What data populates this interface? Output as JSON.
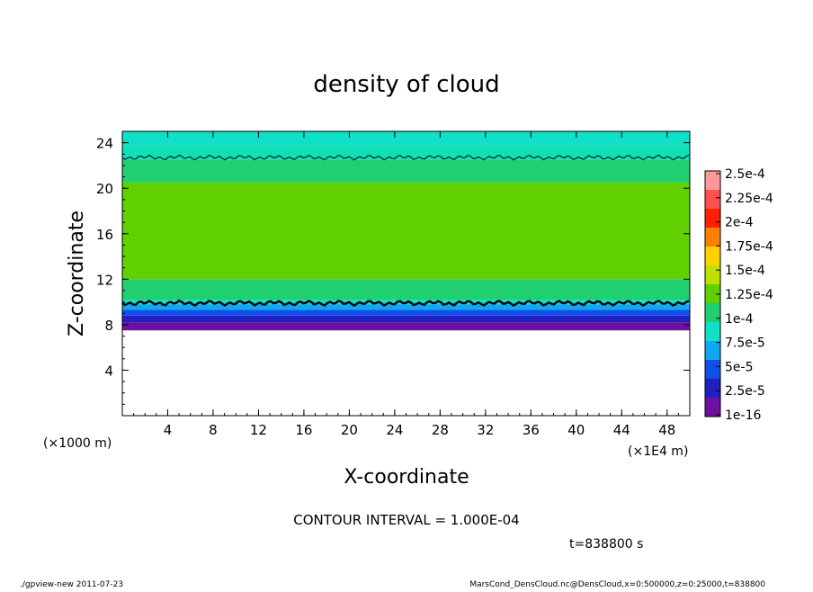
{
  "chart_data": {
    "type": "heatmap",
    "title": "density of cloud",
    "xlabel": "X-coordinate",
    "ylabel": "Z-coordinate",
    "x_unit": "(×1E4 m)",
    "y_unit": "(×1000 m)",
    "xlim": [
      0,
      50
    ],
    "ylim": [
      0,
      25
    ],
    "x_ticks": [
      "4",
      "8",
      "12",
      "16",
      "20",
      "24",
      "28",
      "32",
      "36",
      "40",
      "44",
      "48"
    ],
    "y_ticks": [
      "4",
      "8",
      "12",
      "16",
      "20",
      "24"
    ],
    "colorbar_labels": [
      "2.5e-4",
      "2.25e-4",
      "2e-4",
      "1.75e-4",
      "1.5e-4",
      "1.25e-4",
      "1e-4",
      "7.5e-5",
      "5e-5",
      "2.5e-5",
      "1e-16"
    ],
    "colorbar_colors": [
      "#ff9999",
      "#ff5050",
      "#ff2000",
      "#ff8000",
      "#ffd000",
      "#c0e000",
      "#60d000",
      "#20d070",
      "#10e0c8",
      "#10a8f0",
      "#1050e8",
      "#2020c0",
      "#7010a0"
    ],
    "bands": [
      {
        "z_bottom": 7.5,
        "z_top": 8.2,
        "color": "#7010a0"
      },
      {
        "z_bottom": 8.2,
        "z_top": 8.8,
        "color": "#2020c0"
      },
      {
        "z_bottom": 8.8,
        "z_top": 9.3,
        "color": "#1050e8"
      },
      {
        "z_bottom": 9.3,
        "z_top": 9.8,
        "color": "#10a8f0"
      },
      {
        "z_bottom": 9.8,
        "z_top": 10.2,
        "color": "#10e0c8"
      },
      {
        "z_bottom": 10.2,
        "z_top": 12.0,
        "color": "#20d070"
      },
      {
        "z_bottom": 12.0,
        "z_top": 20.5,
        "color": "#60d000"
      },
      {
        "z_bottom": 20.5,
        "z_top": 22.5,
        "color": "#20d070"
      },
      {
        "z_bottom": 22.5,
        "z_top": 23.8,
        "color": "#10e0b8"
      },
      {
        "z_bottom": 23.8,
        "z_top": 25.0,
        "color": "#10e0c8"
      }
    ],
    "contour_levels_z": [
      9.9,
      22.7
    ],
    "contour_interval": "CONTOUR INTERVAL = 1.000E-04"
  },
  "time_label": "t=838800 s",
  "footer_left": "./gpview-new  2011-07-23",
  "footer_right": "MarsCond_DensCloud.nc@DensCloud,x=0:500000,z=0:25000,t=838800"
}
